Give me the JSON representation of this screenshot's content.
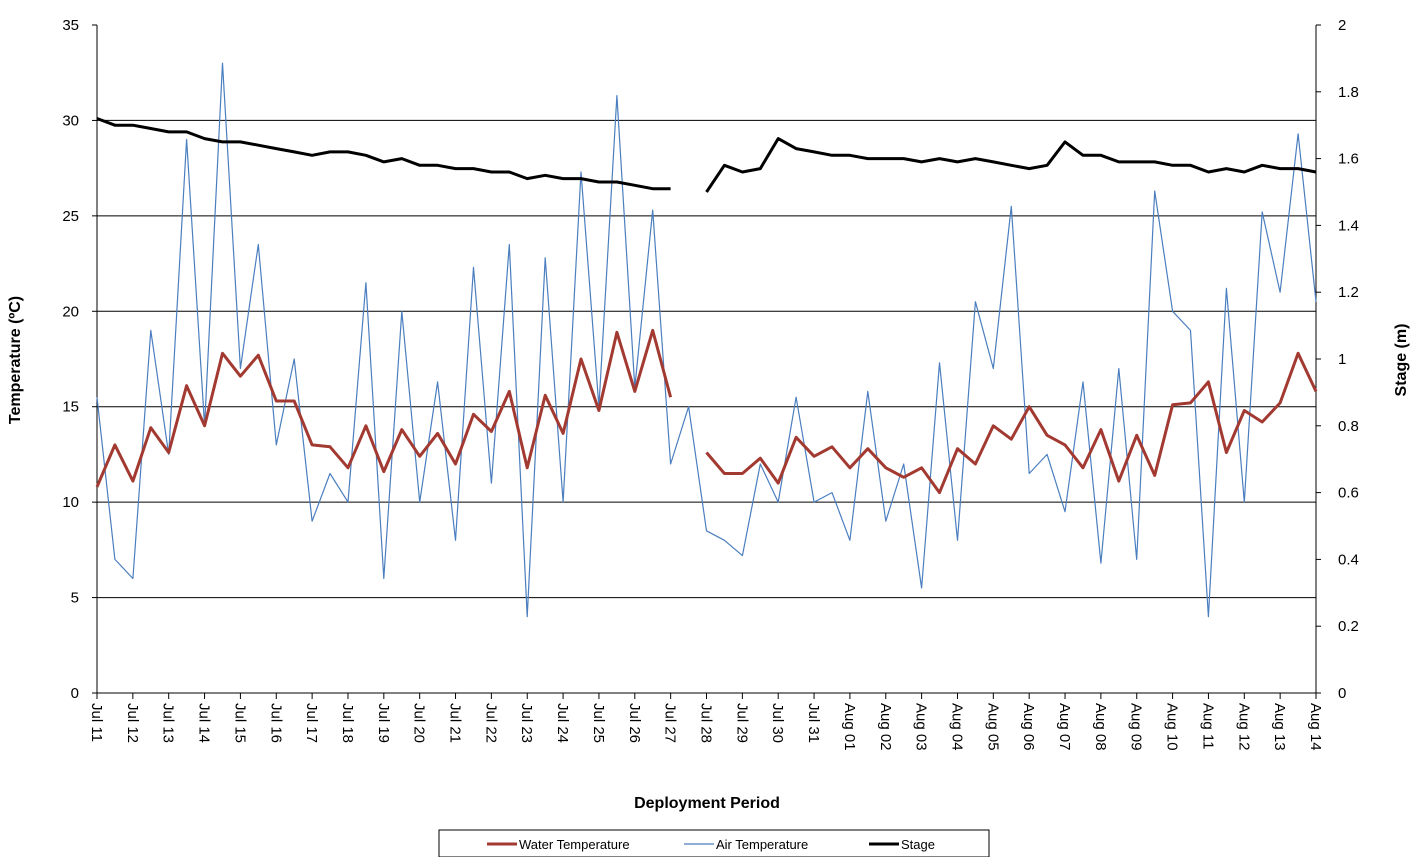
{
  "chart_data": {
    "type": "line",
    "y_label": "Temperature (ºC)",
    "y2_label": "Stage (m)",
    "x_label": "Deployment Period",
    "x": [
      0,
      0.5,
      1,
      1.5,
      2,
      2.5,
      3,
      3.5,
      4,
      4.5,
      5,
      5.5,
      6,
      6.5,
      7,
      7.5,
      8,
      8.5,
      9,
      9.5,
      10,
      10.5,
      11,
      11.5,
      12,
      12.5,
      13,
      13.5,
      14,
      14.5,
      15,
      15.5,
      16,
      16.5,
      17,
      17.5,
      18,
      18.5,
      19,
      19.5,
      20,
      20.5,
      21,
      21.5,
      22,
      22.5,
      23,
      23.5,
      24,
      24.5,
      25,
      25.5,
      26,
      26.5,
      27,
      27.5,
      28,
      28.5,
      29,
      29.5,
      30,
      30.5,
      31,
      31.5,
      32,
      32.5,
      33,
      33.5,
      34
    ],
    "xlim": [
      0,
      34
    ],
    "xticks": [
      {
        "value": 0,
        "label": "Jul 11"
      },
      {
        "value": 1,
        "label": "Jul 12"
      },
      {
        "value": 2,
        "label": "Jul 13"
      },
      {
        "value": 3,
        "label": "Jul 14"
      },
      {
        "value": 4,
        "label": "Jul 15"
      },
      {
        "value": 5,
        "label": "Jul 16"
      },
      {
        "value": 6,
        "label": "Jul 17"
      },
      {
        "value": 7,
        "label": "Jul 18"
      },
      {
        "value": 8,
        "label": "Jul 19"
      },
      {
        "value": 9,
        "label": "Jul 20"
      },
      {
        "value": 10,
        "label": "Jul 21"
      },
      {
        "value": 11,
        "label": "Jul 22"
      },
      {
        "value": 12,
        "label": "Jul 23"
      },
      {
        "value": 13,
        "label": "Jul 24"
      },
      {
        "value": 14,
        "label": "Jul 25"
      },
      {
        "value": 15,
        "label": "Jul 26"
      },
      {
        "value": 16,
        "label": "Jul 27"
      },
      {
        "value": 17,
        "label": "Jul 28"
      },
      {
        "value": 18,
        "label": "Jul 29"
      },
      {
        "value": 19,
        "label": "Jul 30"
      },
      {
        "value": 20,
        "label": "Jul 31"
      },
      {
        "value": 21,
        "label": "Aug 01"
      },
      {
        "value": 22,
        "label": "Aug 02"
      },
      {
        "value": 23,
        "label": "Aug 03"
      },
      {
        "value": 24,
        "label": "Aug 04"
      },
      {
        "value": 25,
        "label": "Aug 05"
      },
      {
        "value": 26,
        "label": "Aug 06"
      },
      {
        "value": 27,
        "label": "Aug 07"
      },
      {
        "value": 28,
        "label": "Aug 08"
      },
      {
        "value": 29,
        "label": "Aug 09"
      },
      {
        "value": 30,
        "label": "Aug 10"
      },
      {
        "value": 31,
        "label": "Aug 11"
      },
      {
        "value": 32,
        "label": "Aug 12"
      },
      {
        "value": 33,
        "label": "Aug 13"
      },
      {
        "value": 34,
        "label": "Aug 14"
      }
    ],
    "ylim": [
      0,
      35
    ],
    "yticks": [
      0,
      5,
      10,
      15,
      20,
      25,
      30,
      35
    ],
    "y2lim": [
      0,
      2
    ],
    "y2ticks": [
      0,
      0.2,
      0.4,
      0.6,
      0.8,
      1,
      1.2,
      1.4,
      1.6,
      1.8,
      2
    ],
    "grid": true,
    "legend": "bottom",
    "series": [
      {
        "name": "Water Temperature",
        "color": "#a33a32",
        "width": 3,
        "values": [
          10.8,
          13.0,
          11.1,
          13.9,
          12.6,
          16.1,
          14.0,
          17.8,
          16.6,
          17.7,
          15.3,
          15.3,
          13.0,
          12.9,
          11.8,
          14.0,
          11.6,
          13.8,
          12.4,
          13.6,
          12.0,
          14.6,
          13.7,
          15.8,
          11.8,
          15.6,
          13.6,
          17.5,
          14.8,
          18.9,
          15.8,
          19.0,
          15.5,
          null,
          12.6,
          11.5,
          11.5,
          12.3,
          11.0,
          13.4,
          12.4,
          12.9,
          11.8,
          12.8,
          11.8,
          11.3,
          11.8,
          10.5,
          12.8,
          12.0,
          14.0,
          13.3,
          15.0,
          13.5,
          13.0,
          11.8,
          13.8,
          11.1,
          13.5,
          11.4,
          15.1,
          15.2,
          16.3,
          12.6,
          14.8,
          14.2,
          15.2,
          17.8,
          15.8
        ]
      },
      {
        "name": "Air Temperature",
        "color": "#4a7ebf",
        "width": 1.2,
        "values": [
          15.5,
          7,
          6,
          19,
          12.5,
          29,
          14,
          33,
          17,
          23.5,
          13,
          17.5,
          9,
          11.5,
          10,
          21.5,
          6,
          20,
          10,
          16.3,
          8,
          22.3,
          11,
          23.5,
          4,
          22.8,
          10,
          27.3,
          15,
          31.3,
          16,
          25.3,
          12,
          15,
          8.5,
          8,
          7.2,
          12,
          10,
          15.5,
          10,
          10.5,
          8,
          15.8,
          9,
          12,
          5.5,
          17.3,
          8,
          20.5,
          17,
          25.5,
          11.5,
          12.5,
          9.5,
          16.3,
          6.8,
          17,
          7,
          26.3,
          20,
          19,
          4,
          21.2,
          10,
          25.2,
          21,
          29.3,
          20.5
        ]
      },
      {
        "name": "Stage",
        "color": "#000000",
        "width": 3,
        "axis": "y2",
        "values": [
          1.72,
          1.7,
          1.7,
          1.69,
          1.68,
          1.68,
          1.66,
          1.65,
          1.65,
          1.64,
          1.63,
          1.62,
          1.61,
          1.62,
          1.62,
          1.61,
          1.59,
          1.6,
          1.58,
          1.58,
          1.57,
          1.57,
          1.56,
          1.56,
          1.54,
          1.55,
          1.54,
          1.54,
          1.53,
          1.53,
          1.52,
          1.51,
          1.51,
          null,
          1.5,
          1.58,
          1.56,
          1.57,
          1.66,
          1.63,
          1.62,
          1.61,
          1.61,
          1.6,
          1.6,
          1.6,
          1.59,
          1.6,
          1.59,
          1.6,
          1.59,
          1.58,
          1.57,
          1.58,
          1.65,
          1.61,
          1.61,
          1.59,
          1.59,
          1.59,
          1.58,
          1.58,
          1.56,
          1.57,
          1.56,
          1.58,
          1.57,
          1.57,
          1.56
        ]
      }
    ]
  }
}
